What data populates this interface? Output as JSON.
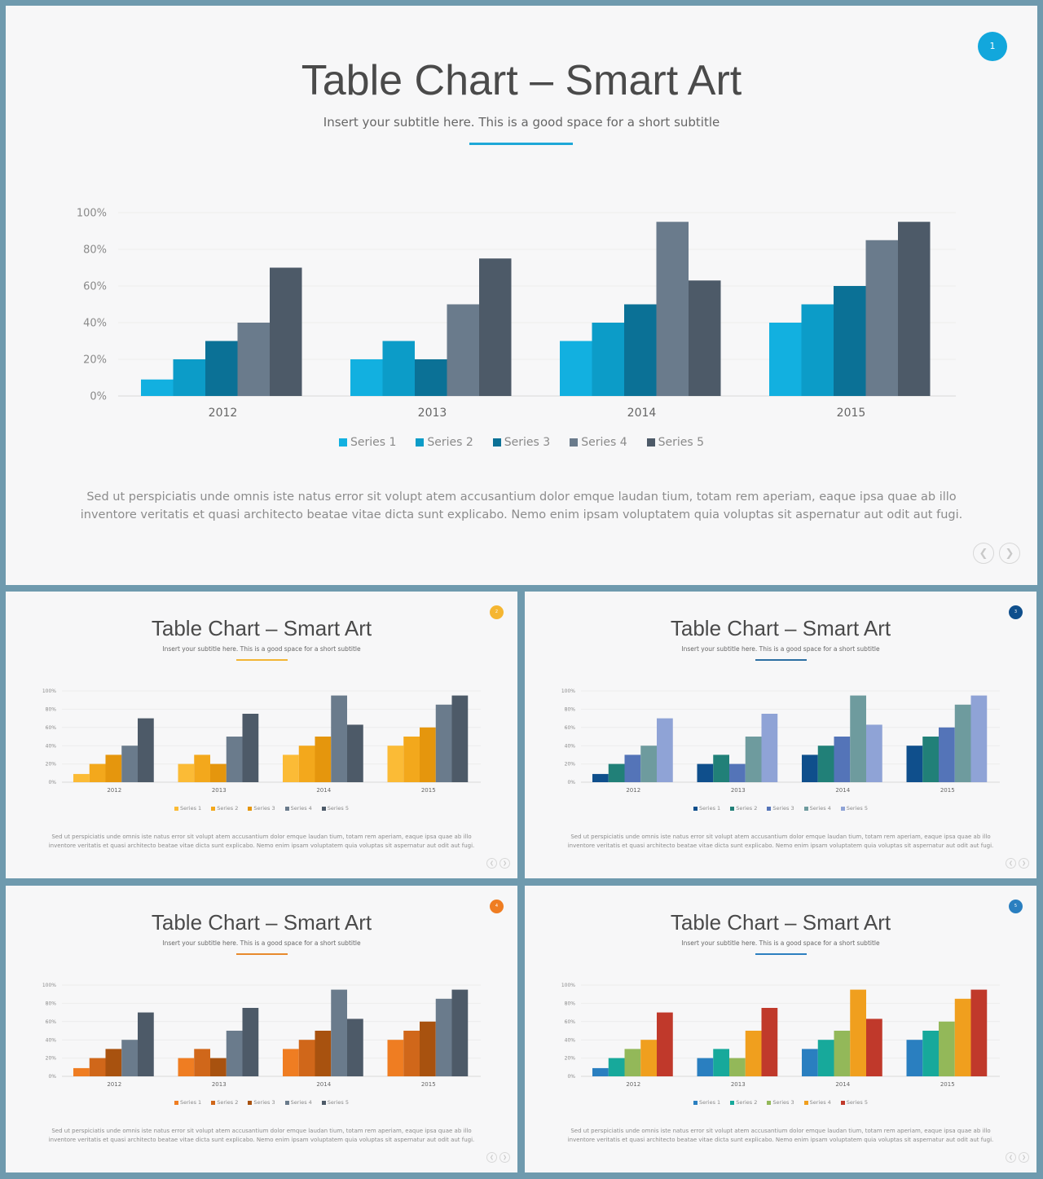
{
  "slides": [
    {
      "title": "Table Chart – Smart Art",
      "subtitle": "Insert your subtitle here. This is a good space for a short subtitle",
      "badge": "1",
      "body": "Sed ut perspiciatis unde omnis iste natus error sit volupt atem accusantium dolor emque laudan tium, totam rem aperiam, eaque ipsa quae ab illo inventore veritatis et quasi architecto beatae vitae dicta sunt explicabo. Nemo enim ipsam voluptatem quia voluptas sit aspernatur aut odit aut fugi.",
      "colors": {
        "accent": "#1ea8d8",
        "badge": "#12a7dc",
        "series": [
          "#12b0e0",
          "#0c9cc8",
          "#0b7196",
          "#6a7b8c",
          "#4d5a68"
        ]
      },
      "nav": {
        "prev_icon": "chevron-left-icon",
        "next_icon": "chevron-right-icon"
      }
    },
    {
      "title": "Table Chart – Smart Art",
      "subtitle": "Insert your subtitle here. This is a good space for a short subtitle",
      "badge": "2",
      "body": "Sed ut perspiciatis unde omnis iste natus error sit volupt atem accusantium dolor emque laudan tium, totam rem aperiam, eaque ipsa quae ab illo inventore veritatis et quasi architecto beatae vitae dicta sunt explicabo. Nemo enim ipsam voluptatem quia voluptas sit aspernatur aut odit aut fugi.",
      "colors": {
        "accent": "#f2b534",
        "badge": "#f5b631",
        "series": [
          "#fbbb36",
          "#f3a81c",
          "#e5960d",
          "#6a7b8c",
          "#4d5a68"
        ]
      },
      "nav": {
        "prev_icon": "chevron-left-icon",
        "next_icon": "chevron-right-icon"
      }
    },
    {
      "title": "Table Chart – Smart Art",
      "subtitle": "Insert your subtitle here. This is a good space for a short subtitle",
      "badge": "3",
      "body": "Sed ut perspiciatis unde omnis iste natus error sit volupt atem accusantium dolor emque laudan tium, totam rem aperiam, eaque ipsa quae ab illo inventore veritatis et quasi architecto beatae vitae dicta sunt explicabo. Nemo enim ipsam voluptatem quia voluptas sit aspernatur aut odit aut fugi.",
      "colors": {
        "accent": "#2b6ea2",
        "badge": "#0f4f8c",
        "series": [
          "#0f4f8c",
          "#218078",
          "#5474b8",
          "#6e9b9e",
          "#8fa3d6"
        ]
      },
      "nav": {
        "prev_icon": "chevron-left-icon",
        "next_icon": "chevron-right-icon"
      }
    },
    {
      "title": "Table Chart – Smart Art",
      "subtitle": "Insert your subtitle here. This is a good space for a short subtitle",
      "badge": "4",
      "body": "Sed ut perspiciatis unde omnis iste natus error sit volupt atem accusantium dolor emque laudan tium, totam rem aperiam, eaque ipsa quae ab illo inventore veritatis et quasi architecto beatae vitae dicta sunt explicabo. Nemo enim ipsam voluptatem quia voluptas sit aspernatur aut odit aut fugi.",
      "colors": {
        "accent": "#e88a2d",
        "badge": "#ef7d22",
        "series": [
          "#ef7d22",
          "#d0671a",
          "#a8520f",
          "#6a7b8c",
          "#4d5a68"
        ]
      },
      "nav": {
        "prev_icon": "chevron-left-icon",
        "next_icon": "chevron-right-icon"
      }
    },
    {
      "title": "Table Chart – Smart Art",
      "subtitle": "Insert your subtitle here. This is a good space for a short subtitle",
      "badge": "5",
      "body": "Sed ut perspiciatis unde omnis iste natus error sit volupt atem accusantium dolor emque laudan tium, totam rem aperiam, eaque ipsa quae ab illo inventore veritatis et quasi architecto beatae vitae dicta sunt explicabo. Nemo enim ipsam voluptatem quia voluptas sit aspernatur aut odit aut fugi.",
      "colors": {
        "accent": "#2d7fc0",
        "badge": "#2a7fc0",
        "series": [
          "#2a7fc0",
          "#17a99b",
          "#93b859",
          "#f09f1e",
          "#c0392b"
        ]
      },
      "nav": {
        "prev_icon": "chevron-left-icon",
        "next_icon": "chevron-right-icon"
      }
    }
  ],
  "chart_data": [
    {
      "type": "bar",
      "categories": [
        "2012",
        "2013",
        "2014",
        "2015"
      ],
      "series": [
        {
          "name": "Series 1",
          "values": [
            9,
            20,
            30,
            40
          ]
        },
        {
          "name": "Series 2",
          "values": [
            20,
            30,
            40,
            50
          ]
        },
        {
          "name": "Series 3",
          "values": [
            30,
            20,
            50,
            60
          ]
        },
        {
          "name": "Series 4",
          "values": [
            40,
            50,
            95,
            85
          ]
        },
        {
          "name": "Series 5",
          "values": [
            70,
            75,
            63,
            95
          ]
        }
      ],
      "y_ticks": [
        "0%",
        "20%",
        "40%",
        "60%",
        "80%",
        "100%"
      ],
      "ylim": [
        0,
        100
      ],
      "grid": true,
      "legend": "bottom"
    },
    {
      "type": "bar",
      "categories": [
        "2012",
        "2013",
        "2014",
        "2015"
      ],
      "series": [
        {
          "name": "Series 1",
          "values": [
            9,
            20,
            30,
            40
          ]
        },
        {
          "name": "Series 2",
          "values": [
            20,
            30,
            40,
            50
          ]
        },
        {
          "name": "Series 3",
          "values": [
            30,
            20,
            50,
            60
          ]
        },
        {
          "name": "Series 4",
          "values": [
            40,
            50,
            95,
            85
          ]
        },
        {
          "name": "Series 5",
          "values": [
            70,
            75,
            63,
            95
          ]
        }
      ],
      "y_ticks": [
        "0%",
        "20%",
        "40%",
        "60%",
        "80%",
        "100%"
      ],
      "ylim": [
        0,
        100
      ],
      "grid": true,
      "legend": "bottom"
    },
    {
      "type": "bar",
      "categories": [
        "2012",
        "2013",
        "2014",
        "2015"
      ],
      "series": [
        {
          "name": "Series 1",
          "values": [
            9,
            20,
            30,
            40
          ]
        },
        {
          "name": "Series 2",
          "values": [
            20,
            30,
            40,
            50
          ]
        },
        {
          "name": "Series 3",
          "values": [
            30,
            20,
            50,
            60
          ]
        },
        {
          "name": "Series 4",
          "values": [
            40,
            50,
            95,
            85
          ]
        },
        {
          "name": "Series 5",
          "values": [
            70,
            75,
            63,
            95
          ]
        }
      ],
      "y_ticks": [
        "0%",
        "20%",
        "40%",
        "60%",
        "80%",
        "100%"
      ],
      "ylim": [
        0,
        100
      ],
      "grid": true,
      "legend": "bottom"
    },
    {
      "type": "bar",
      "categories": [
        "2012",
        "2013",
        "2014",
        "2015"
      ],
      "series": [
        {
          "name": "Series 1",
          "values": [
            9,
            20,
            30,
            40
          ]
        },
        {
          "name": "Series 2",
          "values": [
            20,
            30,
            40,
            50
          ]
        },
        {
          "name": "Series 3",
          "values": [
            30,
            20,
            50,
            60
          ]
        },
        {
          "name": "Series 4",
          "values": [
            40,
            50,
            95,
            85
          ]
        },
        {
          "name": "Series 5",
          "values": [
            70,
            75,
            63,
            95
          ]
        }
      ],
      "y_ticks": [
        "0%",
        "20%",
        "40%",
        "60%",
        "80%",
        "100%"
      ],
      "ylim": [
        0,
        100
      ],
      "grid": true,
      "legend": "bottom"
    },
    {
      "type": "bar",
      "categories": [
        "2012",
        "2013",
        "2014",
        "2015"
      ],
      "series": [
        {
          "name": "Series 1",
          "values": [
            9,
            20,
            30,
            40
          ]
        },
        {
          "name": "Series 2",
          "values": [
            20,
            30,
            40,
            50
          ]
        },
        {
          "name": "Series 3",
          "values": [
            30,
            20,
            50,
            60
          ]
        },
        {
          "name": "Series 4",
          "values": [
            40,
            50,
            95,
            85
          ]
        },
        {
          "name": "Series 5",
          "values": [
            70,
            75,
            63,
            95
          ]
        }
      ],
      "y_ticks": [
        "0%",
        "20%",
        "40%",
        "60%",
        "80%",
        "100%"
      ],
      "ylim": [
        0,
        100
      ],
      "grid": true,
      "legend": "bottom"
    }
  ]
}
